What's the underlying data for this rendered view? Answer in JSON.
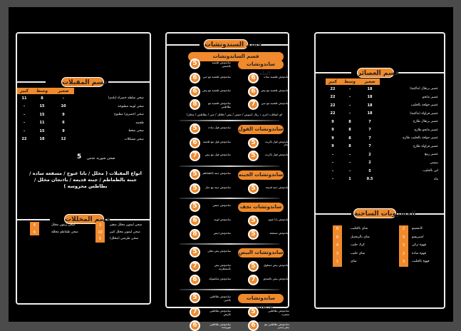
{
  "appetizers": {
    "title": "قسم المقبلات",
    "cols": [
      "كبير",
      "وسط",
      "صغير"
    ],
    "rows": [
      {
        "name": "صحن سلطه خضراء (بلدي)",
        "small": "-",
        "medium": "8",
        "large": "11"
      },
      {
        "name": "صحن لوبيه مطبوخه",
        "small": "10",
        "medium": "15",
        "large": "-"
      },
      {
        "name": "صحن (جمبري) مطبوخ",
        "small": "9",
        "medium": "15",
        "large": "-"
      },
      {
        "name": "طحينه",
        "small": "6",
        "medium": "11",
        "large": "-"
      },
      {
        "name": "صحن ضغط",
        "small": "9",
        "medium": "15",
        "large": "-"
      },
      {
        "name": "صحن مشكلات",
        "small": "12",
        "medium": "18",
        "large": "22"
      }
    ],
    "soup_label": "صحن شوربه عدس",
    "soup_price": "5",
    "types": "انواع المقبلات ( مخلل / بابا غنوج / مسقعه ساده / جبنه بالطماطم / جبنه قديمه / باذنجان مخلل / بطاطس محروسه )"
  },
  "pickles": {
    "title": "قسم المخللات",
    "right": [
      {
        "name": "صحن ليمون مخلل صغير",
        "price": "3"
      },
      {
        "name": "صحن ليمون مخلل كبير",
        "price": "10"
      },
      {
        "name": "صحن طرشي (مخلل)",
        "price": "5"
      }
    ],
    "left": [
      {
        "name": "صحن زيتون مخلل",
        "price": "6"
      },
      {
        "name": "صحن طماطم مخلله",
        "price": "6"
      }
    ]
  },
  "sandwiches": {
    "title": "قسم السندوتشات",
    "banner": "قسم الساندوتشات",
    "note": "اي اضافات اخرى ١ ريال (صوص / حمص / بيض / فلافل / جبن / بطاطس / مخلل)",
    "sections": [
      {
        "name": "ساندوتشات الطعميه",
        "head": {
          "text": "ساندوتش طعميه بالحمص",
          "price": "5"
        },
        "rows": [
          [
            {
              "text": "ساندوتش طعميه مع جبن",
              "price": "6"
            },
            {
              "text": "ساندوتش طعميه ساده",
              "price": "6"
            }
          ],
          [
            {
              "text": "ساندوتش طعميه مع بيض",
              "price": "6"
            },
            {
              "text": "ساندوتش طعميه مع بيض",
              "price": "6"
            }
          ],
          [
            {
              "text": "ساندوتش طعميه مع بطاطس",
              "price": "8"
            },
            {
              "text": "ساندوتش طعميه مع جبن",
              "price": "7"
            }
          ]
        ]
      },
      {
        "name": "ساندوتشات الفول",
        "head": {
          "text": "ساندوتش فول ساده",
          "price": "5"
        },
        "rows": [
          [
            {
              "text": "ساندوتش فول مع طحينه",
              "price": "6"
            },
            {
              "text": "ساندوتش فول بالزيت الحار",
              "price": "5"
            }
          ],
          [
            {
              "text": "ساندوتش فول مع بيض",
              "price": "7"
            },
            {
              "text": "ساندوتش فول بالزيت",
              "price": "5"
            }
          ]
        ]
      },
      {
        "name": "ساندوتشات الجبنه",
        "head": {
          "text": "ساندوتش جبنه بالطماطم",
          "price": "5"
        },
        "rows": [
          [
            {
              "text": "ساندوتش جبنه مع خيار",
              "price": "5"
            },
            {
              "text": "ساندوتش جبنه قديمه",
              "price": "5"
            }
          ]
        ]
      },
      {
        "name": "ساندوتشات نجف",
        "head": {
          "text": "ساندوتش حمص",
          "price": "5"
        },
        "rows": [
          [
            {
              "text": "ساندوتش لوبيه",
              "price": "6"
            },
            {
              "text": "ساندوتش بابا غنوج",
              "price": "5"
            }
          ],
          [
            {
              "text": "ساندوتش ابيض",
              "price": "8"
            },
            {
              "text": "ساندوتش مسقعه",
              "price": "5"
            }
          ]
        ]
      },
      {
        "name": "ساندوتشات البيض",
        "head": {
          "text": "ساندوتش بيض مقلي",
          "price": "5"
        },
        "rows": [
          [
            {
              "text": "ساندوتش بيض بالبسطرمه",
              "price": "7"
            },
            {
              "text": "ساندوتش بيض مسلوق",
              "price": "5"
            }
          ],
          [
            {
              "text": "ساندوتش شكشوكه",
              "price": "6"
            },
            {
              "text": "ساندوتش بيض بالسجق",
              "price": "7"
            }
          ]
        ]
      },
      {
        "name": "ساندوتشات البطاطس",
        "head": {
          "text": "ساندوتش بطاطس بالجبن",
          "price": "5"
        },
        "rows": [
          [
            {
              "text": "ساندوتش بطاطس بالبيض",
              "price": "7"
            },
            {
              "text": "ساندوتش بطاطس محمره",
              "price": "5"
            }
          ],
          [
            {
              "text": "ساندوتش بطاطس مهروسه",
              "price": "6"
            },
            {
              "text": "ساندوتش بطاطس مع بيض وجبن",
              "price": "6"
            }
          ]
        ]
      }
    ]
  },
  "juices": {
    "title": "قسم العصائر",
    "cols": [
      "كبير",
      "وسط",
      "صغير"
    ],
    "rows": [
      {
        "name": "عصير برتقال (ماكينة)",
        "small": "18",
        "medium": "-",
        "large": "22"
      },
      {
        "name": "عصير مانجو",
        "small": "18",
        "medium": "-",
        "large": "22"
      },
      {
        "name": "عصير جوافة بالحليب",
        "small": "18",
        "medium": "-",
        "large": "22"
      },
      {
        "name": "عصير فراولة (ماكينة)",
        "small": "18",
        "medium": "-",
        "large": "22"
      },
      {
        "name": "عصير برتقال طازج",
        "small": "7",
        "medium": "8",
        "large": "9"
      },
      {
        "name": "عصير مانجو طازج",
        "small": "7",
        "medium": "8",
        "large": "9"
      },
      {
        "name": "عصير جوافة بالحليب طازج",
        "small": "7",
        "medium": "8",
        "large": "9"
      },
      {
        "name": "عصير فراولة طازج",
        "small": "7",
        "medium": "8",
        "large": "9"
      },
      {
        "name": "عصير ربيع",
        "small": "2",
        "medium": "-",
        "large": "-"
      },
      {
        "name": "بيبسي",
        "small": "2",
        "medium": "-",
        "large": "-"
      },
      {
        "name": "لبن بالحليب",
        "small": "5",
        "medium": "-",
        "large": "-"
      },
      {
        "name": "ماء",
        "small": "0.5",
        "medium": "1",
        "large": "-"
      }
    ]
  },
  "hot_drinks": {
    "title": "المشروبات الساخنة",
    "right": [
      {
        "name": "كابتشينو",
        "price": "2"
      },
      {
        "name": "اسبريسو",
        "price": "3"
      },
      {
        "name": "قهوة تركي",
        "price": "3"
      },
      {
        "name": "قهوة ساده",
        "price": "2"
      },
      {
        "name": "قهوة بالحليب",
        "price": "3"
      }
    ],
    "left": [
      {
        "name": "شاي بالحليب",
        "price": "6"
      },
      {
        "name": "شاي بالزنجبيل",
        "price": "6"
      },
      {
        "name": "كرك حليب",
        "price": "4"
      },
      {
        "name": "شاي حليب",
        "price": "3"
      },
      {
        "name": "شاي",
        "price": "1"
      }
    ]
  },
  "colors": {
    "accent": "#f08a2c",
    "background": "#000000",
    "frame": "#4b4b4b"
  }
}
